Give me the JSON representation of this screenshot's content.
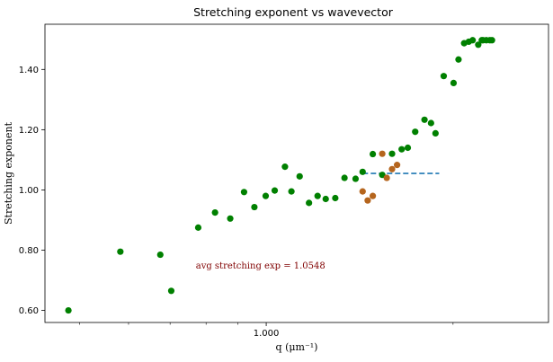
{
  "chart_data": {
    "type": "scatter",
    "title": "Stretching exponent vs wavevector",
    "xlabel": "q (μm⁻¹)",
    "ylabel": "Stretching exponent",
    "xscale": "log",
    "xlim": [
      0.44,
      2.85
    ],
    "ylim": [
      0.56,
      1.55
    ],
    "xticks": [
      1.0
    ],
    "xtick_labels": [
      "1.000"
    ],
    "yticks": [
      0.6,
      0.8,
      1.0,
      1.2,
      1.4
    ],
    "ytick_labels": [
      "0.60",
      "0.80",
      "1.00",
      "1.20",
      "1.40"
    ],
    "grid": false,
    "series": [
      {
        "color": "#008000",
        "x": [
          0.48,
          0.582,
          0.675,
          0.703,
          0.777,
          0.827,
          0.875,
          0.921,
          0.957,
          0.998,
          1.032,
          1.072,
          1.098,
          1.132,
          1.172,
          1.21,
          1.247,
          1.292,
          1.337,
          1.393,
          1.43,
          1.485,
          1.538,
          1.595,
          1.653,
          1.691,
          1.738,
          1.799,
          1.843,
          1.874,
          1.932,
          2.004,
          2.041,
          2.084,
          2.12,
          2.151,
          2.196,
          2.225,
          2.235,
          2.263,
          2.293,
          2.311
        ],
        "y": [
          0.6,
          0.795,
          0.785,
          0.665,
          0.875,
          0.925,
          0.905,
          0.993,
          0.943,
          0.98,
          0.998,
          1.077,
          0.995,
          1.045,
          0.957,
          0.98,
          0.97,
          0.973,
          1.04,
          1.037,
          1.06,
          1.119,
          1.05,
          1.12,
          1.135,
          1.14,
          1.193,
          1.233,
          1.222,
          1.188,
          1.378,
          1.355,
          1.433,
          1.487,
          1.492,
          1.497,
          1.482,
          1.497,
          1.497,
          1.497,
          1.497,
          1.497
        ]
      },
      {
        "color": "#b5651d",
        "x": [
          1.43,
          1.457,
          1.485,
          1.538,
          1.564,
          1.595,
          1.625
        ],
        "y": [
          0.995,
          0.965,
          0.98,
          1.12,
          1.04,
          1.069,
          1.083
        ]
      }
    ],
    "avg_line": {
      "value": 1.0548,
      "x_start": 1.43,
      "x_end": 1.9,
      "color": "#1f77b4"
    },
    "annotation": {
      "text": "avg stretching exp = 1.0548",
      "x": 0.77,
      "y": 0.75,
      "color": "#800000"
    }
  }
}
